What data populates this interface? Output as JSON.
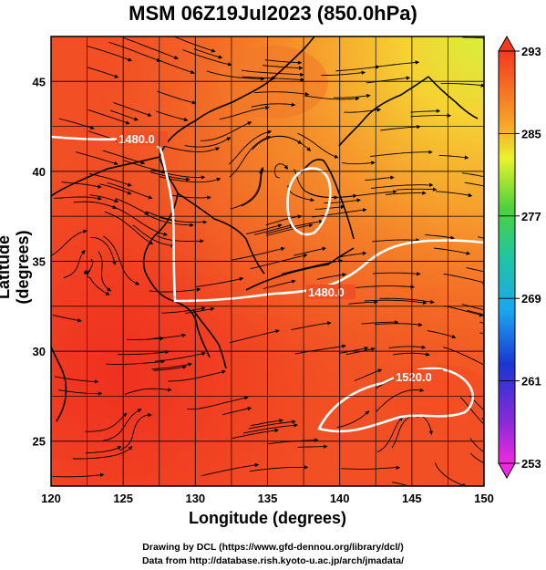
{
  "title": "MSM 06Z19Jul2023 (850.0hPa)",
  "x_axis": {
    "label": "Longitude (degrees)",
    "ticks": [
      "120",
      "125",
      "130",
      "135",
      "140",
      "145",
      "150"
    ]
  },
  "y_axis": {
    "label": "Latitude  (degrees)",
    "ticks": [
      "25",
      "30",
      "35",
      "40",
      "45"
    ]
  },
  "colorbar": {
    "ticks": [
      "293",
      "285",
      "277",
      "269",
      "261",
      "253"
    ]
  },
  "contour_labels": [
    "1480.0",
    "1480.0",
    "1520.0"
  ],
  "credits": {
    "line1": "Drawing by DCL (https://www.gfd-dennou.org/library/dcl/)",
    "line2": "Data from http://database.rish.kyoto-u.ac.jp/arch/jmadata/"
  },
  "chart_data": {
    "type": "heatmap",
    "title": "MSM 06Z19Jul2023 (850.0hPa)",
    "xlabel": "Longitude (degrees)",
    "ylabel": "Latitude  (degrees)",
    "xlim": [
      120,
      150
    ],
    "ylim": [
      22.5,
      47.5
    ],
    "colorbar_range": [
      253,
      293
    ],
    "colorbar_ticks": [
      293,
      285,
      277,
      269,
      261,
      253
    ],
    "overlays": [
      "streamlines",
      "coastlines",
      "geopotential contours"
    ],
    "contour_levels": [
      1480.0,
      1520.0
    ],
    "warm_color": "#f2401f",
    "cool_color": "#d5f03a",
    "contour_color": "#ffffff"
  }
}
